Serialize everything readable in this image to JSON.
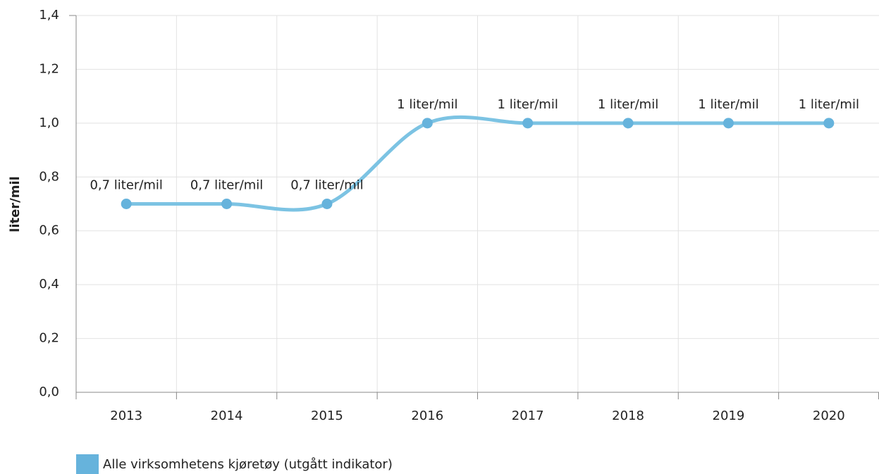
{
  "chart_data": {
    "type": "line",
    "y_label": "liter/mil",
    "categories": [
      "2013",
      "2014",
      "2015",
      "2016",
      "2017",
      "2018",
      "2019",
      "2020"
    ],
    "series": [
      {
        "name": "Alle virksomhetens kjøretøy (utgått indikator)",
        "color": "#7cc3e3",
        "marker_color": "#66b3dc",
        "values": [
          0.7,
          0.7,
          0.7,
          1,
          1,
          1,
          1,
          1
        ],
        "value_labels": [
          "0,7 liter/mil",
          "0,7 liter/mil",
          "0,7 liter/mil",
          "1 liter/mil",
          "1 liter/mil",
          "1 liter/mil",
          "1 liter/mil",
          "1 liter/mil"
        ]
      }
    ],
    "ylim": [
      0,
      1.4
    ],
    "yticks": [
      {
        "value": 0,
        "label": "0,0"
      },
      {
        "value": 0.2,
        "label": "0,2"
      },
      {
        "value": 0.4,
        "label": "0,4"
      },
      {
        "value": 0.6,
        "label": "0,6"
      },
      {
        "value": 0.8,
        "label": "0,8"
      },
      {
        "value": 1,
        "label": "1,0"
      },
      {
        "value": 1.2,
        "label": "1,2"
      },
      {
        "value": 1.4,
        "label": "1,4"
      }
    ],
    "grid": true,
    "legend": "bottom-left"
  }
}
